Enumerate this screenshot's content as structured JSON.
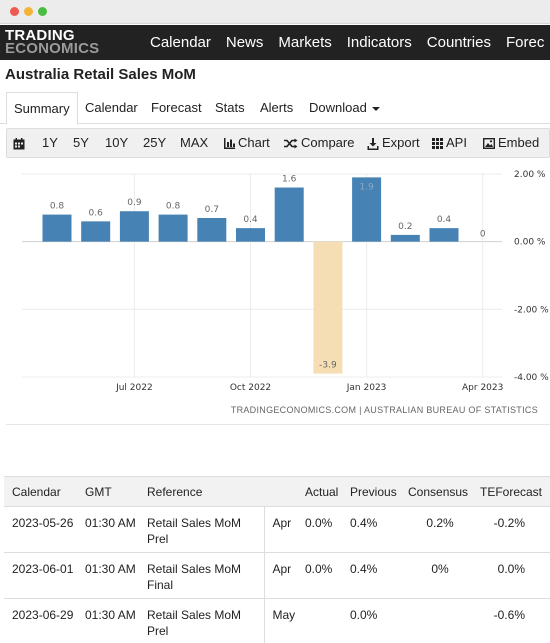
{
  "nav": {
    "logo_line1": "TRADING",
    "logo_line2": "ECONOMICS",
    "links": [
      "Calendar",
      "News",
      "Markets",
      "Indicators",
      "Countries",
      "Forec"
    ]
  },
  "page_title": "Australia Retail Sales MoM",
  "tabs": [
    "Summary",
    "Calendar",
    "Forecast",
    "Stats",
    "Alerts",
    "Download"
  ],
  "toolbar": {
    "ranges": [
      "1Y",
      "5Y",
      "10Y",
      "25Y",
      "MAX"
    ],
    "chart_label": "Chart",
    "compare_label": "Compare",
    "export_label": "Export",
    "api_label": "API",
    "embed_label": "Embed",
    "icons": [
      "calendar-icon",
      "bar-chart-icon",
      "shuffle-icon",
      "download-icon",
      "grid-icon",
      "image-icon"
    ]
  },
  "chart_data": {
    "type": "bar",
    "title": "",
    "xlabel": "",
    "ylabel": "",
    "categories": [
      "2022-05",
      "2022-06",
      "2022-07",
      "2022-08",
      "2022-09",
      "2022-10",
      "2022-11",
      "2022-12",
      "2023-01",
      "2023-02",
      "2023-03",
      "2023-04"
    ],
    "values": [
      0.8,
      0.6,
      0.9,
      0.8,
      0.7,
      0.4,
      1.6,
      -3.9,
      1.9,
      0.2,
      0.4,
      0
    ],
    "value_labels": [
      "0.8",
      "0.6",
      "0.9",
      "0.8",
      "0.7",
      "0.4",
      "1.6",
      "-3.9",
      "1.9",
      "0.2",
      "0.4",
      "0"
    ],
    "ylim": [
      -4,
      2
    ],
    "y_ticks": [
      2,
      0,
      -2,
      -4
    ],
    "y_tick_labels": [
      "2.00 %",
      "0.00 %",
      "-2.00 %",
      "-4.00 %"
    ],
    "x_tick_labels": [
      {
        "label": "Jul 2022",
        "at": "2022-07"
      },
      {
        "label": "Oct 2022",
        "at": "2022-10"
      },
      {
        "label": "Jan 2023",
        "at": "2023-01"
      },
      {
        "label": "Apr 2023",
        "at": "2023-04"
      }
    ],
    "colors": {
      "positive": "#4682b4",
      "negative": "#f5deb3"
    },
    "grid": true,
    "source": "TRADINGECONOMICS.COM | AUSTRALIAN BUREAU OF STATISTICS"
  },
  "calendar": {
    "headers": [
      "Calendar",
      "GMT",
      "Reference",
      "",
      "Actual",
      "Previous",
      "Consensus",
      "TEForecast"
    ],
    "rows": [
      {
        "date": "2023-05-26",
        "gmt": "01:30 AM",
        "reference": "Retail Sales MoM Prel",
        "period": "Apr",
        "actual": "0.0%",
        "previous": "0.4%",
        "consensus": "0.2%",
        "teforecast": "-0.2%"
      },
      {
        "date": "2023-06-01",
        "gmt": "01:30 AM",
        "reference": "Retail Sales MoM Final",
        "period": "Apr",
        "actual": "0.0%",
        "previous": "0.4%",
        "consensus": "0%",
        "teforecast": "0.0%"
      },
      {
        "date": "2023-06-29",
        "gmt": "01:30 AM",
        "reference": "Retail Sales MoM Prel",
        "period": "May",
        "actual": "",
        "previous": "0.0%",
        "consensus": "",
        "teforecast": "-0.6%"
      }
    ]
  }
}
